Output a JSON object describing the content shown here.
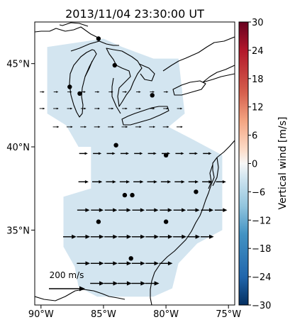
{
  "chart_data": {
    "type": "heatmap",
    "title": "2013/11/04 23:30:00 UT",
    "xlabel": "",
    "ylabel": "",
    "xlim": [
      -90.5,
      -74.5
    ],
    "ylim": [
      30.5,
      47.5
    ],
    "x_ticks": [
      {
        "value": -90,
        "label": "90°W"
      },
      {
        "value": -85,
        "label": "85°W"
      },
      {
        "value": -80,
        "label": "80°W"
      },
      {
        "value": -75,
        "label": "75°W"
      }
    ],
    "y_ticks": [
      {
        "value": 35,
        "label": "35°N"
      },
      {
        "value": 40,
        "label": "40°N"
      },
      {
        "value": 45,
        "label": "45°N"
      }
    ],
    "colorbar": {
      "label": "Vertical wind [m/s]",
      "colormap": "RdBu_r",
      "min": -30,
      "max": 30,
      "ticks": [
        30,
        24,
        18,
        12,
        6,
        0,
        -6,
        -12,
        -18,
        -24,
        -30
      ],
      "tick_labels": [
        "30",
        "24",
        "18",
        "12",
        "6",
        "0",
        "−6",
        "−12",
        "−18",
        "−24",
        "−30"
      ]
    },
    "field": {
      "approx_value": -5,
      "fill_color": "#d3e5f0",
      "region": [
        [
          -89.5,
          46.0
        ],
        [
          -85.0,
          46.5
        ],
        [
          -83.5,
          46.0
        ],
        [
          -81.0,
          45.3
        ],
        [
          -79.0,
          45.3
        ],
        [
          -78.5,
          42.0
        ],
        [
          -79.8,
          41.2
        ],
        [
          -78.0,
          40.5
        ],
        [
          -75.5,
          39.5
        ],
        [
          -75.5,
          35.0
        ],
        [
          -77.5,
          34.2
        ],
        [
          -79.0,
          33.0
        ],
        [
          -79.5,
          31.5
        ],
        [
          -81.0,
          31.0
        ],
        [
          -85.5,
          31.0
        ],
        [
          -87.0,
          31.6
        ],
        [
          -87.3,
          32.8
        ],
        [
          -88.2,
          34.0
        ],
        [
          -88.2,
          37.0
        ],
        [
          -86.0,
          37.5
        ],
        [
          -86.0,
          40.0
        ],
        [
          -87.0,
          40.0
        ],
        [
          -88.0,
          41.3
        ],
        [
          -89.5,
          42.0
        ]
      ]
    },
    "wind_vectors": {
      "reference_label": "200 m/s",
      "reference_magnitude": 200,
      "grid": [
        {
          "lat": 43.3,
          "lons": [
            -89.9,
            -88.8,
            -87.7,
            -86.6,
            -85.5,
            -84.4,
            -83.3,
            -82.2,
            -81.1,
            -80.0
          ],
          "u": 30
        },
        {
          "lat": 42.3,
          "lons": [
            -89.9,
            -88.8,
            -87.7,
            -86.6,
            -85.5,
            -84.4,
            -83.3,
            -82.2,
            -81.1,
            -80.0,
            -78.9
          ],
          "u": 35
        },
        {
          "lat": 41.2,
          "lons": [
            -88.8,
            -87.7,
            -86.6,
            -85.5,
            -84.4,
            -83.3,
            -82.2,
            -81.1,
            -80.0,
            -78.9
          ],
          "u": 40
        },
        {
          "lat": 39.6,
          "lons": [
            -86.6,
            -85.5,
            -84.4,
            -83.3,
            -82.2,
            -81.1,
            -80.0,
            -78.9,
            -77.8,
            -76.7
          ],
          "u": 55
        },
        {
          "lat": 37.9,
          "lons": [
            -86.6,
            -85.5,
            -84.4,
            -83.3,
            -82.2,
            -81.1,
            -80.0,
            -78.9,
            -77.8,
            -76.7,
            -75.6
          ],
          "u": 65
        },
        {
          "lat": 36.2,
          "lons": [
            -86.6,
            -85.5,
            -84.4,
            -83.3,
            -82.2,
            -81.1,
            -80.0,
            -78.9,
            -77.8,
            -76.7,
            -75.6
          ],
          "u": 80
        },
        {
          "lat": 34.6,
          "lons": [
            -87.7,
            -86.6,
            -85.5,
            -84.4,
            -83.3,
            -82.2,
            -81.1,
            -80.0,
            -78.9,
            -77.8,
            -76.7
          ],
          "u": 85
        },
        {
          "lat": 33.0,
          "lons": [
            -86.6,
            -85.5,
            -84.4,
            -83.3,
            -82.2,
            -81.1,
            -80.0
          ],
          "u": 85
        },
        {
          "lat": 31.8,
          "lons": [
            -85.5,
            -84.4,
            -83.3,
            -82.2,
            -81.1
          ],
          "u": 90
        }
      ]
    },
    "stations": [
      {
        "lon": -87.7,
        "lat": 43.6
      },
      {
        "lon": -86.9,
        "lat": 43.2
      },
      {
        "lon": -84.1,
        "lat": 44.9
      },
      {
        "lon": -85.4,
        "lat": 46.5
      },
      {
        "lon": -81.1,
        "lat": 43.1
      },
      {
        "lon": -84.0,
        "lat": 40.1
      },
      {
        "lon": -80.0,
        "lat": 39.5
      },
      {
        "lon": -83.3,
        "lat": 37.1
      },
      {
        "lon": -82.7,
        "lat": 37.1
      },
      {
        "lon": -77.6,
        "lat": 37.3
      },
      {
        "lon": -85.4,
        "lat": 35.5
      },
      {
        "lon": -80.0,
        "lat": 35.5
      },
      {
        "lon": -82.8,
        "lat": 33.3
      }
    ]
  }
}
